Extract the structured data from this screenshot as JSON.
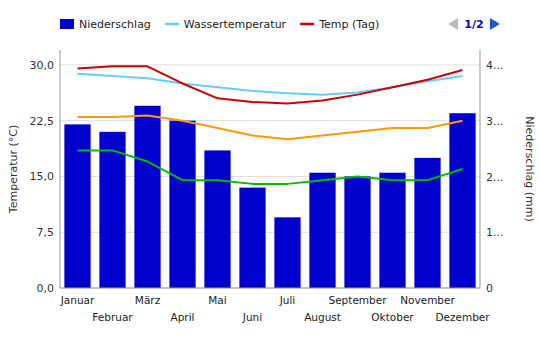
{
  "chart_data": {
    "type": "bar",
    "categories": [
      "Januar",
      "Februar",
      "März",
      "April",
      "Mai",
      "Juni",
      "Juli",
      "August",
      "September",
      "Oktober",
      "November",
      "Dezember"
    ],
    "series": [
      {
        "name": "Niederschlag",
        "type": "bar",
        "color": "#0000cc",
        "values": [
          22.0,
          21.0,
          24.5,
          22.5,
          18.5,
          13.5,
          9.5,
          15.5,
          15.0,
          15.5,
          17.5,
          23.5
        ]
      },
      {
        "name": "Wassertemperatur",
        "type": "line",
        "color": "#66ccff",
        "values": [
          28.8,
          28.5,
          28.2,
          27.5,
          27.0,
          26.5,
          26.2,
          26.0,
          26.3,
          27.0,
          27.8,
          28.5
        ]
      },
      {
        "name": "Temp (Tag)",
        "type": "line",
        "color": "#cc0000",
        "values": [
          29.5,
          29.8,
          29.8,
          27.5,
          25.5,
          25.0,
          24.8,
          25.2,
          26.0,
          27.0,
          28.0,
          29.3
        ]
      },
      {
        "type": "line",
        "color": "#ff9900",
        "values": [
          23.0,
          23.0,
          23.2,
          22.5,
          21.5,
          20.5,
          20.0,
          20.5,
          21.0,
          21.5,
          21.5,
          22.5
        ]
      },
      {
        "type": "line",
        "color": "#00bb00",
        "values": [
          18.5,
          18.5,
          17.0,
          14.5,
          14.5,
          14.0,
          14.0,
          14.5,
          15.0,
          14.5,
          14.5,
          16.0
        ]
      }
    ],
    "ylabel": "Temperatur (°C)",
    "ylim": [
      0,
      32
    ],
    "yticks": [
      {
        "value": 0.0,
        "label": "0,0"
      },
      {
        "value": 7.5,
        "label": "7,5"
      },
      {
        "value": 15.0,
        "label": "15,0"
      },
      {
        "value": 22.5,
        "label": "22,5"
      },
      {
        "value": 30.0,
        "label": "30,0"
      }
    ],
    "y2label": "Niederschlag (mm)",
    "y2lim": [
      0,
      4.27
    ],
    "y2ticks": [
      0,
      {
        "value": 1,
        "label": "1..."
      },
      {
        "value": 2,
        "label": "2..."
      },
      {
        "value": 3,
        "label": "3..."
      },
      {
        "value": 4,
        "label": "4..."
      }
    ],
    "grid": true,
    "legend": "top-left",
    "annotations": [
      "1/2"
    ]
  }
}
